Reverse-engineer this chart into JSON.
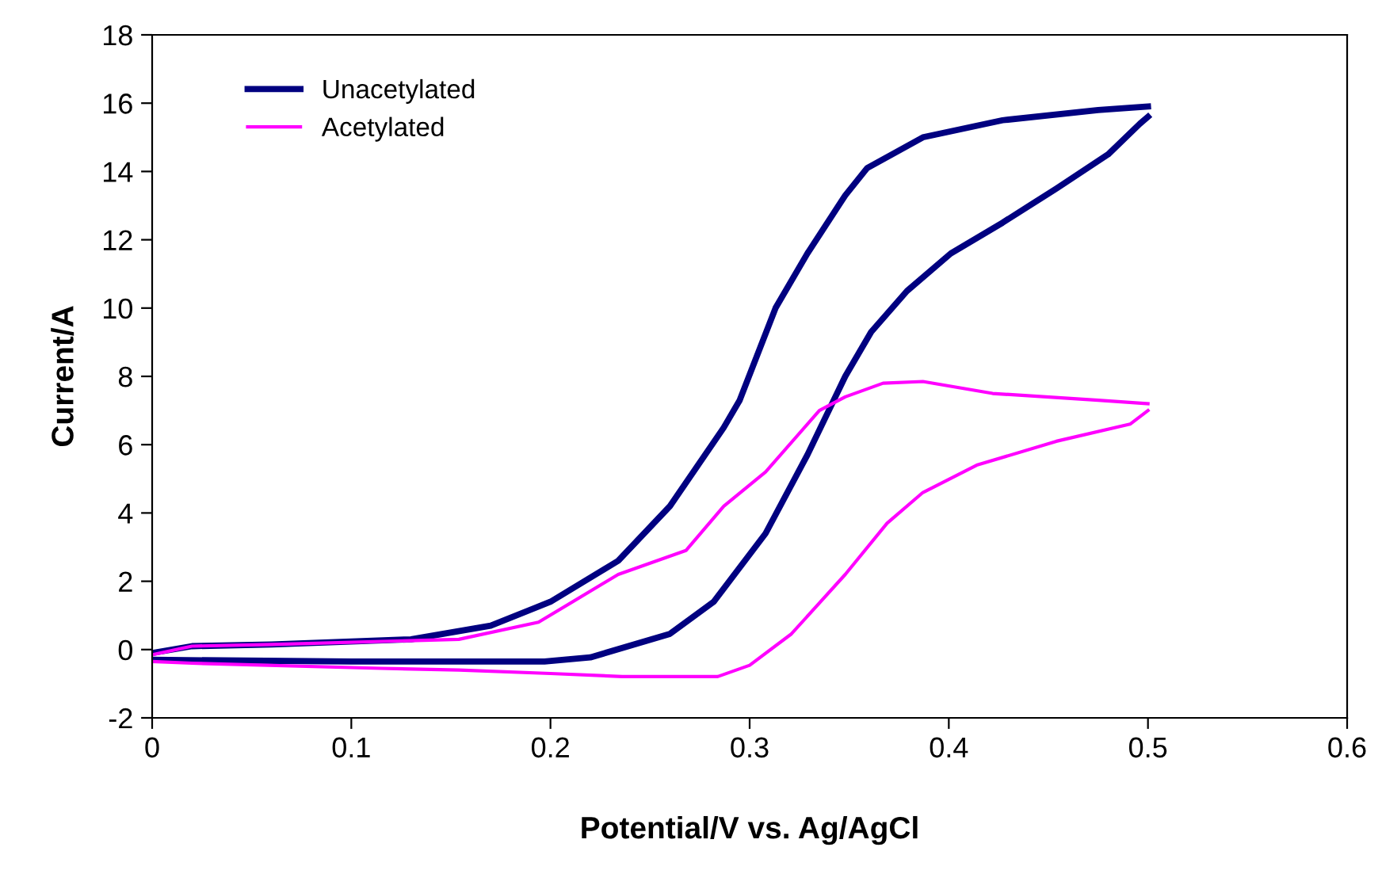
{
  "chart_data": {
    "type": "line",
    "xlabel": "Potential/V vs. Ag/AgCl",
    "ylabel": "Current/A",
    "xlim": [
      0,
      0.6
    ],
    "xticks": [
      0,
      0.1,
      0.2,
      0.3,
      0.4,
      0.5,
      0.6
    ],
    "ylim": [
      -2,
      18
    ],
    "yticks": [
      -2,
      0,
      2,
      4,
      6,
      8,
      10,
      12,
      14,
      16,
      18
    ],
    "grid": false,
    "legend": "top left",
    "marker": "none",
    "line_style": "solid",
    "series": [
      {
        "name": "Unacetylated",
        "color": "#000080",
        "x": [
          0,
          0.02,
          0.06,
          0.13,
          0.17,
          0.2,
          0.234,
          0.26,
          0.287,
          0.295,
          0.313,
          0.329,
          0.348,
          0.359,
          0.387,
          0.427,
          0.475,
          0.5
        ],
        "values": [
          -0.1,
          0.1,
          0.15,
          0.3,
          0.7,
          1.4,
          2.6,
          4.2,
          6.5,
          7.3,
          10,
          11.6,
          13.3,
          14.1,
          15,
          15.5,
          15.8,
          15.9
        ]
      },
      {
        "color": "#000080",
        "x": [
          0,
          0.1,
          0.197,
          0.22,
          0.26,
          0.282,
          0.308,
          0.329,
          0.348,
          0.361,
          0.379,
          0.401,
          0.427,
          0.454,
          0.48,
          0.496,
          0.5
        ],
        "values": [
          -0.3,
          -0.35,
          -0.35,
          -0.23,
          0.46,
          1.4,
          3.4,
          5.7,
          8,
          9.3,
          10.5,
          11.6,
          12.5,
          13.5,
          14.5,
          15.4,
          15.6
        ]
      },
      {
        "name": "Acetylated",
        "color": "#ff00ff",
        "x": [
          0,
          0.02,
          0.06,
          0.154,
          0.194,
          0.234,
          0.268,
          0.287,
          0.308,
          0.335,
          0.348,
          0.367,
          0.387,
          0.422,
          0.475,
          0.5
        ],
        "values": [
          -0.15,
          0.1,
          0.15,
          0.3,
          0.8,
          2.2,
          2.9,
          4.2,
          5.2,
          7,
          7.4,
          7.8,
          7.85,
          7.5,
          7.3,
          7.2
        ]
      },
      {
        "color": "#ff00ff",
        "x": [
          0,
          0.02,
          0.115,
          0.154,
          0.2,
          0.236,
          0.284,
          0.3,
          0.321,
          0.348,
          0.369,
          0.387,
          0.414,
          0.454,
          0.491,
          0.5
        ],
        "values": [
          -0.35,
          -0.4,
          -0.55,
          -0.6,
          -0.7,
          -0.79,
          -0.79,
          -0.46,
          0.46,
          2.2,
          3.7,
          4.6,
          5.4,
          6.1,
          6.6,
          7
        ]
      }
    ]
  }
}
